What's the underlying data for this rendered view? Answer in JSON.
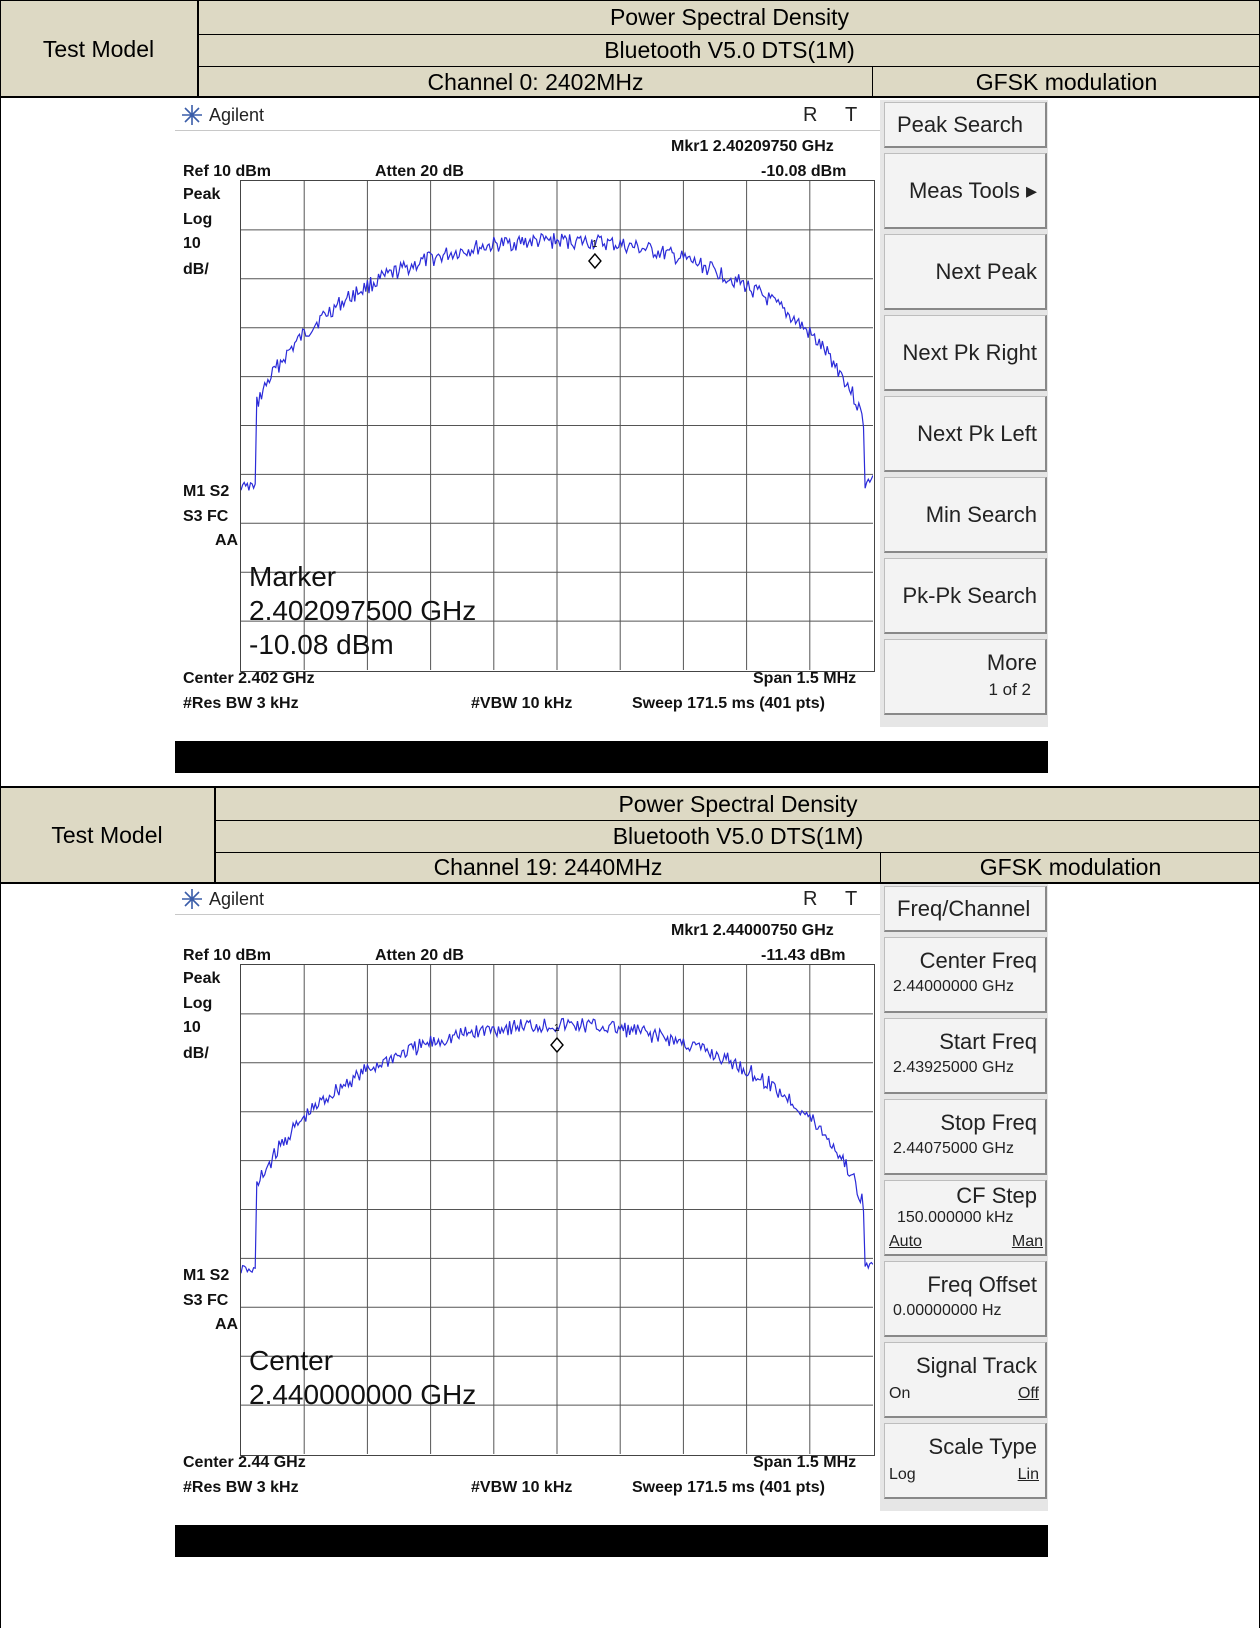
{
  "sections": [
    {
      "test_model_label": "Test Model",
      "title": "Power Spectral Density",
      "mode": "Bluetooth V5.0 DTS(1M)",
      "channel": "Channel 0: 2402MHz",
      "modulation": "GFSK modulation",
      "analyzer": {
        "brand": "Agilent",
        "flag_r": "R",
        "flag_t": "T",
        "mkr_label": "Mkr1  2.40209750 GHz",
        "mkr_value": "-10.08 dBm",
        "ref": "Ref 10 dBm",
        "atten": "Atten 20 dB",
        "scale_lines": [
          "Peak",
          "Log",
          "10",
          "dB/"
        ],
        "status_lines": [
          "M1  S2",
          "S3  FC",
          "AA"
        ],
        "overlay_lines": [
          "Marker",
          "2.402097500 GHz",
          "-10.08 dBm"
        ],
        "center": "Center 2.402 GHz",
        "span": "Span 1.5 MHz",
        "rbw": "#Res BW 3 kHz",
        "vbw": "#VBW 10 kHz",
        "sweep": "Sweep 171.5 ms (401 pts)",
        "marker_number": "1",
        "marker_fraction": 0.56,
        "softkeys": [
          {
            "label": "Peak Search",
            "style": "left"
          },
          {
            "label": "Meas Tools ▸",
            "style": "right"
          },
          {
            "label": "Next Peak",
            "style": "right"
          },
          {
            "label": "Next Pk Right",
            "style": "right"
          },
          {
            "label": "Next Pk Left",
            "style": "right"
          },
          {
            "label": "Min Search",
            "style": "right"
          },
          {
            "label": "Pk-Pk Search",
            "style": "right"
          },
          {
            "label": "More",
            "sub": "1 of 2",
            "style": "more"
          }
        ]
      }
    },
    {
      "test_model_label": "Test Model",
      "title": "Power Spectral Density",
      "mode": "Bluetooth V5.0 DTS(1M)",
      "channel": "Channel 19: 2440MHz",
      "modulation": "GFSK modulation",
      "analyzer": {
        "brand": "Agilent",
        "flag_r": "R",
        "flag_t": "T",
        "mkr_label": "Mkr1  2.44000750 GHz",
        "mkr_value": "-11.43 dBm",
        "ref": "Ref 10 dBm",
        "atten": "Atten 20 dB",
        "scale_lines": [
          "Peak",
          "Log",
          "10",
          "dB/"
        ],
        "status_lines": [
          "M1  S2",
          "S3  FC",
          "AA"
        ],
        "overlay_lines": [
          "Center",
          "2.440000000 GHz",
          ""
        ],
        "center": "Center 2.44 GHz",
        "span": "Span 1.5 MHz",
        "rbw": "#Res BW 3 kHz",
        "vbw": "#VBW 10 kHz",
        "sweep": "Sweep 171.5 ms (401 pts)",
        "marker_number": "1",
        "marker_fraction": 0.5,
        "softkeys": [
          {
            "label": "Freq/Channel",
            "style": "left"
          },
          {
            "label": "Center Freq",
            "sub": "2.44000000 GHz",
            "style": "value"
          },
          {
            "label": "Start Freq",
            "sub": "2.43925000 GHz",
            "style": "value"
          },
          {
            "label": "Stop Freq",
            "sub": "2.44075000 GHz",
            "style": "value"
          },
          {
            "label": "CF Step",
            "sub": "150.000000 kHz",
            "opt_l": "Auto",
            "opt_r": "Man",
            "style": "cfstep"
          },
          {
            "label": "Freq Offset",
            "sub": "0.00000000  Hz",
            "style": "value"
          },
          {
            "label": "Signal Track",
            "opt_l": "On",
            "opt_r": "Off",
            "style": "toggle"
          },
          {
            "label": "Scale Type",
            "opt_l": "Log",
            "opt_r": "Lin",
            "style": "toggle"
          }
        ]
      }
    }
  ]
}
